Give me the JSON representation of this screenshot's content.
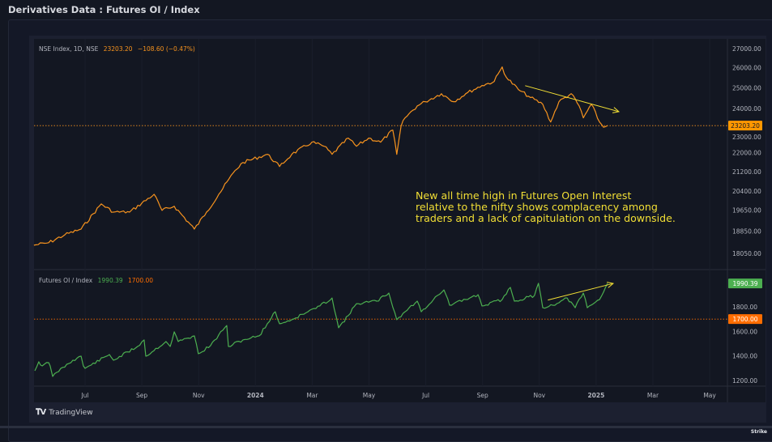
{
  "page": {
    "title": "Derivatives Data : Futures OI / Index",
    "footer_brand": "TradingView",
    "stamp": "Strike"
  },
  "colors": {
    "nifty": "#f7931e",
    "oi": "#4caf50",
    "oi_ref": "#ff6d00",
    "annotation": "#f2df35",
    "arrow": "#f2df35"
  },
  "annotation": {
    "lines": [
      "New all time high in Futures Open Interest",
      "relative to the nifty shows complacency among",
      "traders and a lack of capitulation on the downside."
    ]
  },
  "chart_data": [
    {
      "type": "line",
      "pane": "top",
      "legend": {
        "symbol": "NSE Index, 1D, NSE",
        "last": "23203.20",
        "change": "−108.60 (−0.47%)"
      },
      "scale": "log",
      "ylim": [
        18050,
        27000
      ],
      "yticks": [
        "27000.00",
        "26000.00",
        "25000.00",
        "24000.00",
        "23000.00",
        "22000.00",
        "21200.00",
        "20400.00",
        "19650.00",
        "18850.00",
        "18050.00"
      ],
      "ytick_values": [
        27000,
        26000,
        25000,
        24000,
        23000,
        22000,
        21200,
        20400,
        19650,
        18850,
        18050
      ],
      "last_price_label": "23203.20",
      "last_price": 23203.2,
      "x_unit": "months since Jan 2023",
      "series": [
        {
          "name": "NSE Index",
          "points": [
            [
              4.2,
              18340
            ],
            [
              4.72,
              18430
            ],
            [
              5.29,
              18720
            ],
            [
              5.86,
              18930
            ],
            [
              6.57,
              19890
            ],
            [
              7.0,
              19575
            ],
            [
              7.57,
              19575
            ],
            [
              8.43,
              20270
            ],
            [
              8.71,
              19640
            ],
            [
              9.14,
              19800
            ],
            [
              9.85,
              18930
            ],
            [
              10.28,
              19575
            ],
            [
              10.71,
              20270
            ],
            [
              11.28,
              21240
            ],
            [
              11.56,
              21580
            ],
            [
              12.42,
              21930
            ],
            [
              12.85,
              21410
            ],
            [
              13.28,
              21930
            ],
            [
              13.99,
              22460
            ],
            [
              14.42,
              22280
            ],
            [
              14.7,
              21930
            ],
            [
              15.27,
              22640
            ],
            [
              15.56,
              22280
            ],
            [
              15.99,
              22640
            ],
            [
              16.41,
              22460
            ],
            [
              16.84,
              23000
            ],
            [
              16.98,
              21930
            ],
            [
              17.13,
              23180
            ],
            [
              17.27,
              23560
            ],
            [
              17.7,
              24120
            ],
            [
              17.98,
              24320
            ],
            [
              18.55,
              24710
            ],
            [
              18.98,
              24320
            ],
            [
              19.41,
              24710
            ],
            [
              19.98,
              25110
            ],
            [
              20.41,
              25310
            ],
            [
              20.69,
              26040
            ],
            [
              20.84,
              25510
            ],
            [
              21.26,
              24910
            ],
            [
              21.69,
              24520
            ],
            [
              22.12,
              24200
            ],
            [
              22.4,
              23370
            ],
            [
              22.69,
              24320
            ],
            [
              23.12,
              24710
            ],
            [
              23.4,
              24120
            ],
            [
              23.55,
              23560
            ],
            [
              23.83,
              24200
            ],
            [
              24.12,
              23370
            ],
            [
              24.26,
              23130
            ],
            [
              24.4,
              23203.2
            ]
          ]
        }
      ],
      "trend_arrow": {
        "from": [
          21.5,
          25100
        ],
        "to": [
          24.8,
          23850
        ],
        "direction": "down"
      }
    },
    {
      "type": "line",
      "pane": "bottom",
      "legend": {
        "symbol": "Futures OI / Index",
        "last": "1990.39",
        "ref": "1700.00"
      },
      "ylim": [
        1150,
        2060
      ],
      "yticks": [
        "1800.00",
        "1600.00",
        "1400.00",
        "1200.00"
      ],
      "ytick_values": [
        1800,
        1600,
        1400,
        1200
      ],
      "last_value_label": "1990.39",
      "last_value": 1990.39,
      "reference_label": "1700.00",
      "reference_value": 1700,
      "series": [
        {
          "name": "Futures OI / Index",
          "points": [
            [
              4.23,
              1279
            ],
            [
              4.37,
              1352
            ],
            [
              4.49,
              1319
            ],
            [
              4.72,
              1345
            ],
            [
              4.77,
              1319
            ],
            [
              4.86,
              1233
            ],
            [
              5.0,
              1266
            ],
            [
              5.57,
              1365
            ],
            [
              5.86,
              1398
            ],
            [
              5.94,
              1319
            ],
            [
              6.0,
              1299
            ],
            [
              6.86,
              1411
            ],
            [
              7.0,
              1365
            ],
            [
              7.85,
              1477
            ],
            [
              8.08,
              1530
            ],
            [
              8.14,
              1398
            ],
            [
              8.85,
              1517
            ],
            [
              9.0,
              1477
            ],
            [
              9.14,
              1596
            ],
            [
              9.28,
              1517
            ],
            [
              9.85,
              1563
            ],
            [
              9.99,
              1418
            ],
            [
              10.42,
              1484
            ],
            [
              10.85,
              1609
            ],
            [
              10.99,
              1648
            ],
            [
              11.05,
              1477
            ],
            [
              11.56,
              1530
            ],
            [
              12.13,
              1563
            ],
            [
              12.42,
              1662
            ],
            [
              12.7,
              1760
            ],
            [
              12.85,
              1662
            ],
            [
              13.28,
              1695
            ],
            [
              13.85,
              1760
            ],
            [
              14.27,
              1807
            ],
            [
              14.7,
              1872
            ],
            [
              14.93,
              1629
            ],
            [
              15.27,
              1728
            ],
            [
              15.56,
              1826
            ],
            [
              16.27,
              1846
            ],
            [
              16.7,
              1912
            ],
            [
              16.98,
              1695
            ],
            [
              17.27,
              1760
            ],
            [
              17.7,
              1846
            ],
            [
              17.84,
              1760
            ],
            [
              18.41,
              1892
            ],
            [
              18.64,
              1938
            ],
            [
              18.84,
              1813
            ],
            [
              19.55,
              1872
            ],
            [
              19.84,
              1899
            ],
            [
              19.98,
              1807
            ],
            [
              20.69,
              1859
            ],
            [
              20.98,
              1958
            ],
            [
              21.12,
              1846
            ],
            [
              21.83,
              1892
            ],
            [
              21.97,
              1991
            ],
            [
              22.12,
              1793
            ],
            [
              22.69,
              1833
            ],
            [
              22.98,
              1872
            ],
            [
              23.26,
              1793
            ],
            [
              23.55,
              1912
            ],
            [
              23.69,
              1793
            ],
            [
              24.12,
              1859
            ],
            [
              24.4,
              1990.39
            ]
          ]
        }
      ],
      "trend_arrow": {
        "from": [
          22.3,
          1855
        ],
        "to": [
          24.6,
          1990
        ],
        "direction": "up"
      }
    }
  ],
  "xaxis": {
    "ticks": [
      "Jul",
      "Sep",
      "Nov",
      "2024",
      "Mar",
      "May",
      "Jul",
      "Sep",
      "Nov",
      "2025",
      "Mar",
      "May"
    ],
    "tick_months": [
      6,
      8,
      10,
      12,
      14,
      16,
      18,
      20,
      22,
      24,
      26,
      28
    ],
    "bold": [
      "2024",
      "2025"
    ]
  }
}
